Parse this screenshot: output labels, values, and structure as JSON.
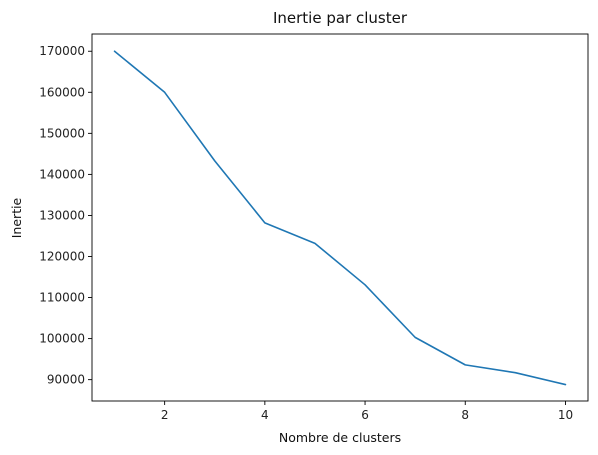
{
  "chart_data": {
    "type": "line",
    "title": "Inertie par cluster",
    "xlabel": "Nombre de clusters",
    "ylabel": "Inertie",
    "x": [
      1,
      2,
      3,
      4,
      5,
      6,
      7,
      8,
      9,
      10
    ],
    "series": [
      {
        "values": [
          170000,
          160000,
          143300,
          128200,
          123200,
          113100,
          100300,
          93600,
          91700,
          88800
        ],
        "color": "#1f77b4"
      }
    ],
    "xlim": [
      0.55,
      10.45
    ],
    "ylim": [
      84800,
      174200
    ],
    "xticks": [
      2,
      4,
      6,
      8,
      10
    ],
    "xtick_labels": [
      "2",
      "4",
      "6",
      "8",
      "10"
    ],
    "yticks": [
      90000,
      100000,
      110000,
      120000,
      130000,
      140000,
      150000,
      160000,
      170000
    ],
    "ytick_labels": [
      "90000",
      "100000",
      "110000",
      "120000",
      "130000",
      "140000",
      "150000",
      "160000",
      "170000"
    ],
    "grid": false,
    "legend": "none"
  }
}
